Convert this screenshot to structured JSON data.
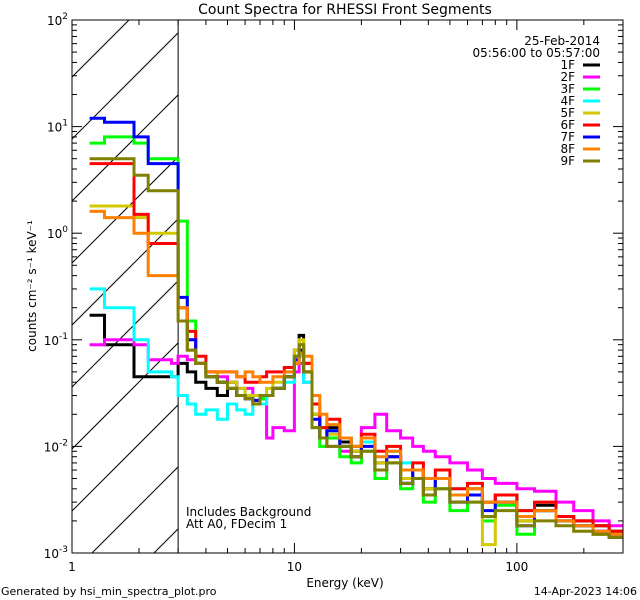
{
  "chart_data": {
    "type": "line",
    "title": "Count Spectra for RHESSI Front Segments",
    "xlabel": "Energy (keV)",
    "ylabel": "counts cm⁻² s⁻¹ keV⁻¹",
    "xscale": "log",
    "yscale": "log",
    "xlim": [
      1,
      300
    ],
    "ylim": [
      0.001,
      100
    ],
    "x_tick_labels": [
      "1",
      "10",
      "100"
    ],
    "y_tick_labels": [
      {
        "base": "10",
        "exp": "-3"
      },
      {
        "base": "10",
        "exp": "-2"
      },
      {
        "base": "10",
        "exp": "-1"
      },
      {
        "base": "10",
        "exp": "0"
      },
      {
        "base": "10",
        "exp": "1"
      },
      {
        "base": "10",
        "exp": "2"
      }
    ],
    "grid": false,
    "hatched_region_keV": [
      1,
      3
    ],
    "legend_placement": "top-right",
    "legend_header": [
      "25-Feb-2014",
      "05:56:00 to 05:57:00"
    ],
    "annotations": [
      "Includes Background",
      "Att A0, FDecim 1"
    ],
    "energy_bin_edges": [
      1.2,
      1.4,
      1.6,
      1.9,
      2.2,
      2.5,
      2.8,
      3.0,
      3.3,
      3.6,
      4.0,
      4.5,
      5.0,
      5.5,
      6.0,
      6.5,
      7.0,
      7.5,
      8.0,
      9.0,
      10.0,
      10.5,
      11.0,
      12,
      13,
      14,
      16,
      18,
      20,
      23,
      26,
      30,
      34,
      38,
      43,
      50,
      60,
      70,
      80,
      100,
      120,
      150,
      180,
      220,
      260,
      300
    ],
    "series": [
      {
        "name": "1F",
        "color": "#000000",
        "values": [
          0.17,
          0.09,
          0.09,
          0.045,
          0.045,
          0.045,
          0.045,
          0.06,
          0.05,
          0.04,
          0.035,
          0.03,
          0.04,
          0.03,
          0.03,
          0.027,
          0.028,
          0.03,
          0.035,
          0.045,
          0.08,
          0.11,
          0.06,
          0.02,
          0.012,
          0.015,
          0.011,
          0.009,
          0.011,
          0.007,
          0.008,
          0.0045,
          0.006,
          0.004,
          0.005,
          0.0035,
          0.004,
          0.003,
          0.0035,
          0.002,
          0.0028,
          0.0022,
          0.002,
          0.0018,
          0.0016
        ]
      },
      {
        "name": "2F",
        "color": "#ff00ff",
        "values": [
          0.09,
          0.1,
          0.1,
          0.09,
          0.065,
          0.065,
          0.06,
          0.07,
          0.065,
          0.06,
          0.05,
          0.045,
          0.04,
          0.035,
          0.035,
          0.03,
          0.03,
          0.012,
          0.015,
          0.014,
          0.05,
          0.06,
          0.04,
          0.02,
          0.012,
          0.01,
          0.009,
          0.008,
          0.015,
          0.02,
          0.014,
          0.012,
          0.01,
          0.009,
          0.008,
          0.007,
          0.006,
          0.005,
          0.0045,
          0.004,
          0.0038,
          0.003,
          0.0025,
          0.002,
          0.0018
        ]
      },
      {
        "name": "3F",
        "color": "#00ff00",
        "values": [
          7,
          8,
          8,
          7,
          5,
          5,
          5,
          1.3,
          0.15,
          0.06,
          0.045,
          0.04,
          0.035,
          0.03,
          0.028,
          0.025,
          0.028,
          0.03,
          0.035,
          0.045,
          0.07,
          0.09,
          0.05,
          0.015,
          0.01,
          0.012,
          0.008,
          0.007,
          0.009,
          0.005,
          0.007,
          0.004,
          0.005,
          0.003,
          0.004,
          0.0025,
          0.003,
          0.002,
          0.0028,
          0.0015,
          0.0025,
          0.002,
          0.0018,
          0.0015,
          0.0014
        ]
      },
      {
        "name": "4F",
        "color": "#00ffff",
        "values": [
          0.3,
          0.2,
          0.2,
          0.1,
          0.05,
          0.05,
          0.045,
          0.03,
          0.025,
          0.02,
          0.022,
          0.018,
          0.025,
          0.022,
          0.02,
          0.025,
          0.025,
          0.03,
          0.035,
          0.04,
          0.06,
          0.07,
          0.04,
          0.02,
          0.015,
          0.014,
          0.012,
          0.01,
          0.011,
          0.008,
          0.009,
          0.007,
          0.006,
          0.005,
          0.005,
          0.004,
          0.004,
          0.003,
          0.003,
          0.0025,
          0.0025,
          0.002,
          0.0018,
          0.0016,
          0.0015
        ]
      },
      {
        "name": "5F",
        "color": "#d4c800",
        "values": [
          1.8,
          1.8,
          1.8,
          1.4,
          1.0,
          1.0,
          1.0,
          0.2,
          0.1,
          0.06,
          0.05,
          0.04,
          0.04,
          0.035,
          0.03,
          0.03,
          0.03,
          0.035,
          0.04,
          0.05,
          0.08,
          0.1,
          0.06,
          0.02,
          0.015,
          0.013,
          0.01,
          0.009,
          0.01,
          0.007,
          0.008,
          0.005,
          0.006,
          0.004,
          0.005,
          0.0035,
          0.004,
          0.0012,
          0.003,
          0.002,
          0.0025,
          0.002,
          0.0018,
          0.0015,
          0.0014
        ]
      },
      {
        "name": "6F",
        "color": "#ff0000",
        "values": [
          4.5,
          4.5,
          4.5,
          1.5,
          0.8,
          0.8,
          0.8,
          0.2,
          0.12,
          0.07,
          0.05,
          0.05,
          0.05,
          0.045,
          0.04,
          0.04,
          0.045,
          0.05,
          0.05,
          0.055,
          0.06,
          0.08,
          0.06,
          0.025,
          0.015,
          0.018,
          0.012,
          0.01,
          0.013,
          0.009,
          0.01,
          0.006,
          0.007,
          0.005,
          0.006,
          0.004,
          0.0045,
          0.003,
          0.0035,
          0.0025,
          0.003,
          0.0022,
          0.002,
          0.0018,
          0.0016
        ]
      },
      {
        "name": "7F",
        "color": "#0000ff",
        "values": [
          12,
          11,
          11,
          8,
          4.5,
          4.5,
          4.5,
          0.25,
          0.1,
          0.06,
          0.045,
          0.04,
          0.035,
          0.03,
          0.028,
          0.027,
          0.03,
          0.03,
          0.035,
          0.045,
          0.065,
          0.08,
          0.05,
          0.018,
          0.012,
          0.014,
          0.01,
          0.008,
          0.01,
          0.006,
          0.008,
          0.0045,
          0.006,
          0.0035,
          0.005,
          0.003,
          0.0035,
          0.0025,
          0.003,
          0.0018,
          0.0025,
          0.002,
          0.0018,
          0.0016,
          0.0014
        ]
      },
      {
        "name": "8F",
        "color": "#ff8000",
        "values": [
          1.6,
          1.4,
          1.4,
          1.0,
          0.4,
          0.4,
          0.4,
          0.2,
          0.08,
          0.06,
          0.05,
          0.05,
          0.05,
          0.045,
          0.05,
          0.045,
          0.04,
          0.04,
          0.045,
          0.05,
          0.06,
          0.075,
          0.07,
          0.03,
          0.02,
          0.016,
          0.012,
          0.01,
          0.012,
          0.008,
          0.009,
          0.006,
          0.006,
          0.005,
          0.005,
          0.0035,
          0.004,
          0.003,
          0.003,
          0.0022,
          0.0025,
          0.002,
          0.0018,
          0.0016,
          0.0015
        ]
      },
      {
        "name": "9F",
        "color": "#808000",
        "values": [
          5,
          5,
          5,
          3.5,
          2.5,
          2.5,
          2.5,
          0.15,
          0.08,
          0.06,
          0.045,
          0.04,
          0.035,
          0.03,
          0.028,
          0.025,
          0.03,
          0.03,
          0.035,
          0.045,
          0.07,
          0.09,
          0.05,
          0.015,
          0.012,
          0.01,
          0.01,
          0.008,
          0.009,
          0.006,
          0.007,
          0.0045,
          0.005,
          0.0035,
          0.004,
          0.003,
          0.003,
          0.0022,
          0.0025,
          0.0018,
          0.002,
          0.0018,
          0.0016,
          0.0015,
          0.0014
        ]
      }
    ]
  },
  "footer": {
    "left": "Generated by hsi_min_spectra_plot.pro",
    "right": "14-Apr-2023 14:06"
  }
}
